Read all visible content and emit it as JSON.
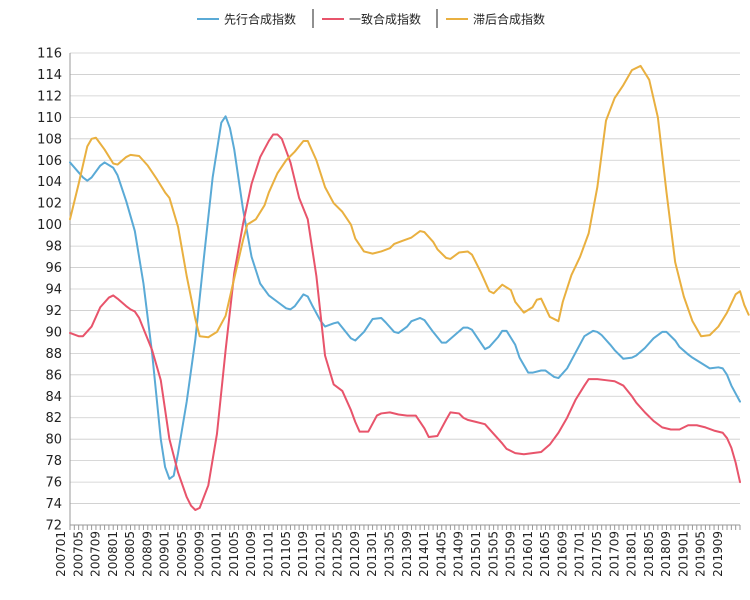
{
  "chart_data": {
    "type": "line",
    "title": "",
    "xlabel": "",
    "ylabel": "",
    "ylim": [
      72,
      116
    ],
    "y_ticks": [
      72,
      74,
      76,
      78,
      80,
      82,
      84,
      86,
      88,
      90,
      92,
      94,
      96,
      98,
      100,
      102,
      104,
      106,
      108,
      110,
      112,
      114,
      116
    ],
    "x_range": [
      "200701",
      "201912"
    ],
    "x_tick_labels": [
      "200701",
      "200705",
      "200709",
      "200801",
      "200805",
      "200809",
      "200901",
      "200905",
      "200909",
      "201001",
      "201005",
      "201009",
      "201101",
      "201105",
      "201109",
      "201201",
      "201205",
      "201209",
      "201301",
      "201305",
      "201309",
      "201401",
      "201405",
      "201409",
      "201501",
      "201505",
      "201509",
      "201601",
      "201605",
      "201609",
      "201701",
      "201705",
      "201709",
      "201801",
      "201805",
      "201809",
      "201901",
      "201905",
      "201909"
    ],
    "grid": "horizontal",
    "legend_position": "top-center",
    "series": [
      {
        "name": "先行合成指数",
        "color": "#5aaad6",
        "points": [
          [
            "200701",
            105.8
          ],
          [
            "200704",
            104.4
          ],
          [
            "200705",
            104.1
          ],
          [
            "200706",
            104.4
          ],
          [
            "200708",
            105.5
          ],
          [
            "200709",
            105.8
          ],
          [
            "200711",
            105.3
          ],
          [
            "200712",
            104.6
          ],
          [
            "200802",
            102.2
          ],
          [
            "200804",
            99.4
          ],
          [
            "200806",
            94.5
          ],
          [
            "200808",
            88.0
          ],
          [
            "200810",
            80.0
          ],
          [
            "200811",
            77.4
          ],
          [
            "200812",
            76.3
          ],
          [
            "200901",
            76.6
          ],
          [
            "200902",
            78.7
          ],
          [
            "200904",
            83.5
          ],
          [
            "200906",
            89.3
          ],
          [
            "200908",
            97.0
          ],
          [
            "200910",
            104.4
          ],
          [
            "200912",
            109.5
          ],
          [
            "201001",
            110.1
          ],
          [
            "201002",
            109.0
          ],
          [
            "201003",
            107.0
          ],
          [
            "201005",
            101.5
          ],
          [
            "201007",
            97.0
          ],
          [
            "201009",
            94.5
          ],
          [
            "201011",
            93.4
          ],
          [
            "201101",
            92.8
          ],
          [
            "201103",
            92.2
          ],
          [
            "201104",
            92.1
          ],
          [
            "201105",
            92.4
          ],
          [
            "201107",
            93.5
          ],
          [
            "201108",
            93.3
          ],
          [
            "201109",
            92.5
          ],
          [
            "201111",
            91.0
          ],
          [
            "201112",
            90.5
          ],
          [
            "201202",
            90.8
          ],
          [
            "201203",
            90.9
          ],
          [
            "201204",
            90.4
          ],
          [
            "201206",
            89.4
          ],
          [
            "201207",
            89.2
          ],
          [
            "201209",
            90.0
          ],
          [
            "201211",
            91.2
          ],
          [
            "201301",
            91.3
          ],
          [
            "201302",
            90.9
          ],
          [
            "201304",
            90.0
          ],
          [
            "201305",
            89.9
          ],
          [
            "201307",
            90.5
          ],
          [
            "201308",
            91.0
          ],
          [
            "201310",
            91.3
          ],
          [
            "201311",
            91.1
          ],
          [
            "201401",
            90.0
          ],
          [
            "201403",
            89.0
          ],
          [
            "201404",
            89.0
          ],
          [
            "201406",
            89.7
          ],
          [
            "201408",
            90.4
          ],
          [
            "201409",
            90.4
          ],
          [
            "201410",
            90.2
          ],
          [
            "201412",
            89.0
          ],
          [
            "201501",
            88.4
          ],
          [
            "201502",
            88.6
          ],
          [
            "201504",
            89.5
          ],
          [
            "201505",
            90.1
          ],
          [
            "201506",
            90.1
          ],
          [
            "201508",
            88.8
          ],
          [
            "201509",
            87.6
          ],
          [
            "201511",
            86.2
          ],
          [
            "201512",
            86.2
          ],
          [
            "201602",
            86.4
          ],
          [
            "201603",
            86.4
          ],
          [
            "201605",
            85.8
          ],
          [
            "201606",
            85.7
          ],
          [
            "201608",
            86.6
          ],
          [
            "201610",
            88.1
          ],
          [
            "201612",
            89.6
          ],
          [
            "201702",
            90.1
          ],
          [
            "201703",
            90.0
          ],
          [
            "201704",
            89.7
          ],
          [
            "201706",
            88.8
          ],
          [
            "201707",
            88.3
          ],
          [
            "201709",
            87.5
          ],
          [
            "201711",
            87.6
          ],
          [
            "201712",
            87.8
          ],
          [
            "201802",
            88.5
          ],
          [
            "201804",
            89.4
          ],
          [
            "201806",
            90.0
          ],
          [
            "201807",
            90.0
          ],
          [
            "201809",
            89.2
          ],
          [
            "201810",
            88.6
          ],
          [
            "201812",
            87.9
          ],
          [
            "201901",
            87.6
          ],
          [
            "201903",
            87.1
          ],
          [
            "201905",
            86.6
          ],
          [
            "201907",
            86.7
          ],
          [
            "201908",
            86.6
          ],
          [
            "201909",
            86.0
          ],
          [
            "201910",
            85.0
          ],
          [
            "201912",
            83.5
          ]
        ]
      },
      {
        "name": "一致合成指数",
        "color": "#e8546b",
        "points": [
          [
            "200701",
            89.9
          ],
          [
            "200703",
            89.6
          ],
          [
            "200704",
            89.6
          ],
          [
            "200706",
            90.5
          ],
          [
            "200708",
            92.3
          ],
          [
            "200710",
            93.2
          ],
          [
            "200711",
            93.4
          ],
          [
            "200712",
            93.1
          ],
          [
            "200802",
            92.4
          ],
          [
            "200803",
            92.1
          ],
          [
            "200804",
            91.9
          ],
          [
            "200805",
            91.3
          ],
          [
            "200806",
            90.3
          ],
          [
            "200808",
            88.3
          ],
          [
            "200810",
            85.5
          ],
          [
            "200812",
            80.0
          ],
          [
            "200902",
            76.9
          ],
          [
            "200904",
            74.6
          ],
          [
            "200905",
            73.8
          ],
          [
            "200906",
            73.4
          ],
          [
            "200907",
            73.6
          ],
          [
            "200909",
            75.7
          ],
          [
            "200911",
            80.5
          ],
          [
            "201001",
            88.3
          ],
          [
            "201003",
            95.5
          ],
          [
            "201005",
            100.0
          ],
          [
            "201007",
            103.8
          ],
          [
            "201009",
            106.3
          ],
          [
            "201011",
            107.8
          ],
          [
            "201012",
            108.4
          ],
          [
            "201101",
            108.4
          ],
          [
            "201102",
            108.0
          ],
          [
            "201104",
            105.8
          ],
          [
            "201106",
            102.5
          ],
          [
            "201108",
            100.5
          ],
          [
            "201110",
            95.2
          ],
          [
            "201112",
            87.8
          ],
          [
            "201202",
            85.1
          ],
          [
            "201204",
            84.5
          ],
          [
            "201206",
            82.7
          ],
          [
            "201207",
            81.6
          ],
          [
            "201208",
            80.7
          ],
          [
            "201210",
            80.7
          ],
          [
            "201212",
            82.2
          ],
          [
            "201301",
            82.4
          ],
          [
            "201303",
            82.5
          ],
          [
            "201305",
            82.3
          ],
          [
            "201307",
            82.2
          ],
          [
            "201309",
            82.2
          ],
          [
            "201311",
            81.0
          ],
          [
            "201312",
            80.2
          ],
          [
            "201402",
            80.3
          ],
          [
            "201404",
            81.8
          ],
          [
            "201405",
            82.5
          ],
          [
            "201407",
            82.4
          ],
          [
            "201408",
            82.0
          ],
          [
            "201409",
            81.8
          ],
          [
            "201411",
            81.6
          ],
          [
            "201501",
            81.4
          ],
          [
            "201503",
            80.5
          ],
          [
            "201505",
            79.6
          ],
          [
            "201506",
            79.1
          ],
          [
            "201508",
            78.7
          ],
          [
            "201510",
            78.6
          ],
          [
            "201512",
            78.7
          ],
          [
            "201602",
            78.8
          ],
          [
            "201604",
            79.5
          ],
          [
            "201606",
            80.6
          ],
          [
            "201608",
            82.0
          ],
          [
            "201610",
            83.7
          ],
          [
            "201612",
            85.0
          ],
          [
            "201701",
            85.6
          ],
          [
            "201703",
            85.6
          ],
          [
            "201705",
            85.5
          ],
          [
            "201707",
            85.4
          ],
          [
            "201709",
            85.0
          ],
          [
            "201711",
            84.0
          ],
          [
            "201712",
            83.4
          ],
          [
            "201802",
            82.5
          ],
          [
            "201804",
            81.7
          ],
          [
            "201806",
            81.1
          ],
          [
            "201808",
            80.9
          ],
          [
            "201810",
            80.9
          ],
          [
            "201812",
            81.3
          ],
          [
            "201902",
            81.3
          ],
          [
            "201904",
            81.1
          ],
          [
            "201906",
            80.8
          ],
          [
            "201908",
            80.6
          ],
          [
            "201909",
            80.1
          ],
          [
            "201910",
            79.2
          ],
          [
            "201911",
            77.8
          ],
          [
            "201912",
            76.0
          ]
        ]
      },
      {
        "name": "滞后合成指数",
        "color": "#e9b040",
        "points": [
          [
            "200701",
            100.5
          ],
          [
            "200703",
            103.8
          ],
          [
            "200705",
            107.3
          ],
          [
            "200706",
            108.0
          ],
          [
            "200707",
            108.1
          ],
          [
            "200709",
            107.0
          ],
          [
            "200711",
            105.7
          ],
          [
            "200712",
            105.6
          ],
          [
            "200802",
            106.3
          ],
          [
            "200803",
            106.5
          ],
          [
            "200805",
            106.4
          ],
          [
            "200807",
            105.5
          ],
          [
            "200809",
            104.3
          ],
          [
            "200811",
            103.0
          ],
          [
            "200812",
            102.5
          ],
          [
            "200902",
            99.8
          ],
          [
            "200904",
            95.2
          ],
          [
            "200906",
            91.2
          ],
          [
            "200907",
            89.6
          ],
          [
            "200909",
            89.5
          ],
          [
            "200911",
            90.0
          ],
          [
            "201001",
            91.5
          ],
          [
            "201003",
            95.0
          ],
          [
            "201005",
            98.5
          ],
          [
            "201006",
            100.0
          ],
          [
            "201008",
            100.5
          ],
          [
            "201010",
            101.8
          ],
          [
            "201011",
            103.0
          ],
          [
            "201101",
            104.8
          ],
          [
            "201103",
            106.0
          ],
          [
            "201105",
            106.8
          ],
          [
            "201107",
            107.8
          ],
          [
            "201108",
            107.8
          ],
          [
            "201110",
            106.0
          ],
          [
            "201112",
            103.5
          ],
          [
            "201202",
            102.0
          ],
          [
            "201204",
            101.2
          ],
          [
            "201206",
            100.0
          ],
          [
            "201207",
            98.7
          ],
          [
            "201209",
            97.5
          ],
          [
            "201211",
            97.3
          ],
          [
            "201301",
            97.5
          ],
          [
            "201303",
            97.8
          ],
          [
            "201304",
            98.2
          ],
          [
            "201306",
            98.5
          ],
          [
            "201308",
            98.8
          ],
          [
            "201310",
            99.4
          ],
          [
            "201311",
            99.3
          ],
          [
            "201401",
            98.4
          ],
          [
            "201402",
            97.7
          ],
          [
            "201404",
            96.9
          ],
          [
            "201405",
            96.8
          ],
          [
            "201407",
            97.4
          ],
          [
            "201409",
            97.5
          ],
          [
            "201410",
            97.2
          ],
          [
            "201412",
            95.6
          ],
          [
            "201502",
            93.8
          ],
          [
            "201503",
            93.6
          ],
          [
            "201505",
            94.4
          ],
          [
            "201507",
            93.9
          ],
          [
            "201508",
            92.8
          ],
          [
            "201510",
            91.8
          ],
          [
            "201512",
            92.3
          ],
          [
            "201601",
            93.0
          ],
          [
            "201602",
            93.1
          ],
          [
            "201604",
            91.4
          ],
          [
            "201606",
            91.0
          ],
          [
            "201607",
            92.8
          ],
          [
            "201609",
            95.3
          ],
          [
            "201611",
            97.0
          ],
          [
            "201701",
            99.2
          ],
          [
            "201703",
            103.5
          ],
          [
            "201705",
            109.7
          ],
          [
            "201707",
            111.8
          ],
          [
            "201709",
            113.0
          ],
          [
            "201711",
            114.4
          ],
          [
            "201801",
            114.8
          ],
          [
            "201803",
            113.5
          ],
          [
            "201805",
            110.0
          ],
          [
            "201807",
            103.0
          ],
          [
            "201809",
            96.5
          ],
          [
            "201811",
            93.3
          ],
          [
            "201901",
            91.0
          ],
          [
            "201903",
            89.6
          ],
          [
            "201905",
            89.7
          ],
          [
            "201907",
            90.5
          ],
          [
            "201909",
            91.8
          ],
          [
            "201911",
            93.5
          ],
          [
            "201912",
            93.8
          ],
          [
            "202001",
            92.5
          ],
          [
            "202002",
            91.6
          ]
        ]
      }
    ]
  }
}
